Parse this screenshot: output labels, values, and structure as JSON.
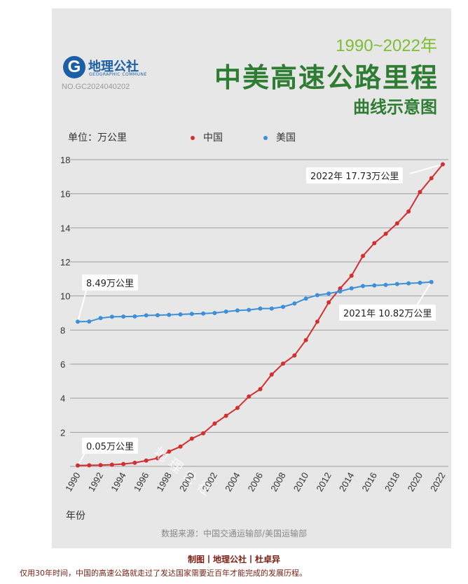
{
  "logo": {
    "letter": "G",
    "name": "地理公社",
    "english": "GEOGRAPHIC COMMUNE",
    "number": "NO.GC2024040202"
  },
  "header": {
    "years": "1990~2022年",
    "title": "中美高速公路里程",
    "subtitle": "曲线示意图"
  },
  "chart_data": {
    "type": "line",
    "unit_label": "单位：万公里",
    "xlabel": "年份",
    "ylabel": "",
    "ylim": [
      0,
      18
    ],
    "xlim": [
      1990,
      2022
    ],
    "yticks": [
      2,
      4,
      6,
      8,
      10,
      12,
      14,
      16,
      18
    ],
    "xticks": [
      1990,
      1992,
      1994,
      1996,
      1998,
      2000,
      2002,
      2004,
      2006,
      2008,
      2010,
      2012,
      2014,
      2016,
      2018,
      2020,
      2022
    ],
    "grid": "horizontal",
    "legend_position": "top",
    "series": [
      {
        "name": "中国",
        "color": "#d32f2f",
        "x": [
          1990,
          1991,
          1992,
          1993,
          1994,
          1995,
          1996,
          1997,
          1998,
          1999,
          2000,
          2001,
          2002,
          2003,
          2004,
          2005,
          2006,
          2007,
          2008,
          2009,
          2010,
          2011,
          2012,
          2013,
          2014,
          2015,
          2016,
          2017,
          2018,
          2019,
          2020,
          2021,
          2022
        ],
        "values": [
          0.05,
          0.06,
          0.07,
          0.1,
          0.14,
          0.21,
          0.34,
          0.48,
          0.87,
          1.16,
          1.63,
          1.94,
          2.51,
          2.97,
          3.43,
          4.1,
          4.53,
          5.39,
          6.03,
          6.51,
          7.41,
          8.49,
          9.62,
          10.44,
          11.19,
          12.35,
          13.1,
          13.65,
          14.26,
          14.96,
          16.1,
          16.91,
          17.73
        ]
      },
      {
        "name": "美国",
        "color": "#3d8fd8",
        "x": [
          1990,
          1991,
          1992,
          1993,
          1994,
          1995,
          1996,
          1997,
          1998,
          1999,
          2000,
          2001,
          2002,
          2003,
          2004,
          2005,
          2006,
          2007,
          2008,
          2009,
          2010,
          2011,
          2012,
          2013,
          2014,
          2015,
          2016,
          2017,
          2018,
          2019,
          2020,
          2021
        ],
        "values": [
          8.49,
          8.5,
          8.7,
          8.78,
          8.79,
          8.8,
          8.86,
          8.87,
          8.89,
          8.92,
          8.95,
          8.97,
          9.0,
          9.08,
          9.15,
          9.18,
          9.26,
          9.26,
          9.36,
          9.56,
          9.85,
          10.05,
          10.14,
          10.27,
          10.45,
          10.58,
          10.62,
          10.65,
          10.7,
          10.74,
          10.77,
          10.82
        ]
      }
    ],
    "annotations": [
      {
        "text": "8.49万公里",
        "x": 1990,
        "y": 8.49
      },
      {
        "text": "0.05万公里",
        "x": 1990,
        "y": 0.05
      },
      {
        "text": "2022年  17.73万公里",
        "x": 2022,
        "y": 17.73
      },
      {
        "text": "2021年  10.82万公里",
        "x": 2021,
        "y": 10.82
      }
    ]
  },
  "watermark": "地理公社",
  "source": "数据来源：中国交通运输部/美国运输部",
  "credit": "制图丨地理公社丨杜卓异",
  "caption": "仅用30年时间，中国的高速公路就走过了发达国家需要近百年才能完成的发展历程。"
}
